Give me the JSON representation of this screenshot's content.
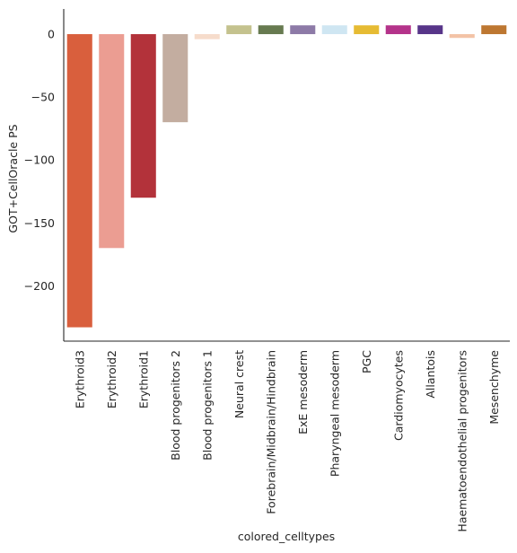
{
  "chart_data": {
    "type": "bar",
    "xlabel": "colored_celltypes",
    "ylabel": "GOT+CellOracle PS",
    "ylim": [
      -244,
      20
    ],
    "yticks": [
      0,
      -50,
      -100,
      -150,
      -200
    ],
    "ytick_labels": [
      "0",
      "−50",
      "−100",
      "−150",
      "−200"
    ],
    "grid": false,
    "categories": [
      "Erythroid3",
      "Erythroid2",
      "Erythroid1",
      "Blood progenitors 2",
      "Blood progenitors 1",
      "Neural crest",
      "Forebrain/Midbrain/Hindbrain",
      "ExE mesoderm",
      "Pharyngeal mesoderm",
      "PGC",
      "Cardiomyocytes",
      "Allantois",
      "Haematoendothelial progenitors",
      "Mesenchyme"
    ],
    "values": [
      -233,
      -170,
      -130,
      -70,
      -4,
      7,
      7,
      7,
      7,
      7,
      7,
      7,
      -3,
      7
    ],
    "colors": [
      "#d95f3d",
      "#eb9d92",
      "#b3323a",
      "#c3ada0",
      "#f6dccb",
      "#c4c28e",
      "#677a50",
      "#8d7aa7",
      "#cfe6f2",
      "#e6bb33",
      "#b4338a",
      "#573589",
      "#f3c3a6",
      "#bd7731"
    ]
  }
}
